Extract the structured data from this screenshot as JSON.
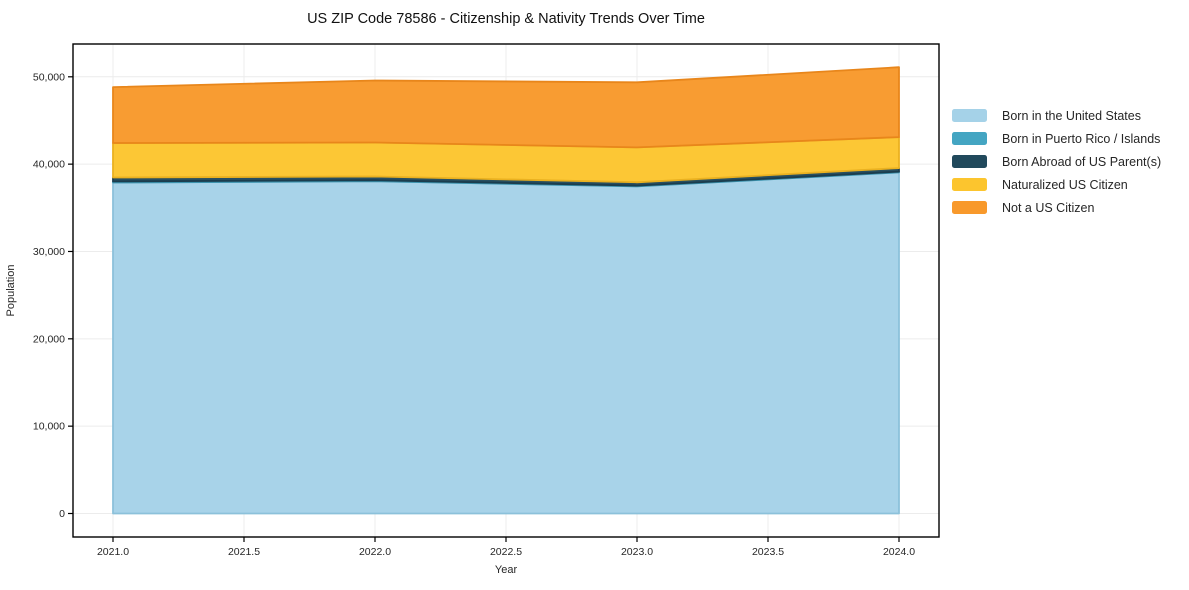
{
  "title": "US ZIP Code 78586 - Citizenship & Nativity Trends Over Time",
  "chart_data": {
    "type": "area",
    "stacked": true,
    "title": "US ZIP Code 78586 - Citizenship & Nativity Trends Over Time",
    "xlabel": "Year",
    "ylabel": "Population",
    "x": [
      2021,
      2022,
      2023,
      2024
    ],
    "xlim": [
      2020.85,
      2024.15
    ],
    "ylim": [
      -2650,
      53700
    ],
    "grid": true,
    "legend_position": "right-outside",
    "xticks": [
      2021.0,
      2021.5,
      2022.0,
      2022.5,
      2023.0,
      2023.5,
      2024.0
    ],
    "xtick_labels": [
      "2021.0",
      "2021.5",
      "2022.0",
      "2022.5",
      "2023.0",
      "2023.5",
      "2024.0"
    ],
    "yticks": [
      0,
      10000,
      20000,
      30000,
      40000,
      50000
    ],
    "ytick_labels": [
      "0",
      "10,000",
      "20,000",
      "30,000",
      "40,000",
      "50,000"
    ],
    "series": [
      {
        "name": "Born in the United States",
        "color": "#a5d2e8",
        "edge": "#8cc1da",
        "values": [
          37900,
          38050,
          37450,
          39050
        ]
      },
      {
        "name": "Born in Puerto Rico / Islands",
        "color": "#44a5c2",
        "edge": "#3b93ae",
        "values": [
          120,
          110,
          90,
          100
        ]
      },
      {
        "name": "Born Abroad of US Parent(s)",
        "color": "#21495c",
        "edge": "#1b3d4e",
        "values": [
          450,
          420,
          380,
          400
        ]
      },
      {
        "name": "Naturalized US Citizen",
        "color": "#fcc52e",
        "edge": "#eab120",
        "values": [
          3950,
          3900,
          4000,
          3550
        ]
      },
      {
        "name": "Not a US Citizen",
        "color": "#f8992b",
        "edge": "#e8861b",
        "values": [
          6400,
          7100,
          7450,
          8000
        ]
      }
    ],
    "grid_color": "#ececec",
    "spine_color": "#000000"
  }
}
